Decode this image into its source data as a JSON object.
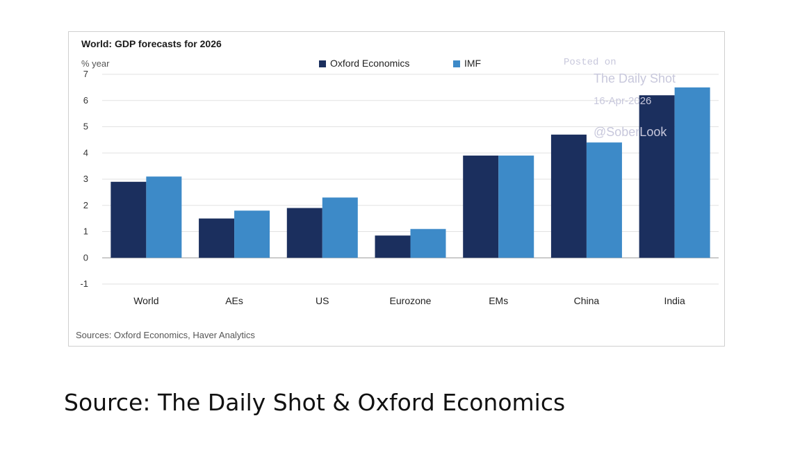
{
  "chart_data": {
    "type": "bar",
    "title": "World: GDP forecasts for 2026",
    "unit_label": "% year",
    "categories": [
      "World",
      "AEs",
      "US",
      "Eurozone",
      "EMs",
      "China",
      "India"
    ],
    "series": [
      {
        "name": "Oxford Economics",
        "color": "#1b2f5e",
        "values": [
          2.9,
          1.5,
          1.9,
          0.85,
          3.9,
          4.7,
          6.2
        ]
      },
      {
        "name": "IMF",
        "color": "#3d8ac8",
        "values": [
          3.1,
          1.8,
          2.3,
          1.1,
          3.9,
          4.4,
          6.5
        ]
      }
    ],
    "ylim": [
      -1,
      7
    ],
    "yticks": [
      "-1",
      "0",
      "1",
      "2",
      "3",
      "4",
      "5",
      "6",
      "7"
    ],
    "grid": true,
    "legend_position": "top-center",
    "source_note": "Sources: Oxford Economics, Haver Analytics"
  },
  "watermark": {
    "line1": "Posted on",
    "line2": "The Daily Shot",
    "line3": "16-Apr-2026",
    "line4": "@SoberLook"
  },
  "caption": "Source: The Daily Shot & Oxford Economics"
}
